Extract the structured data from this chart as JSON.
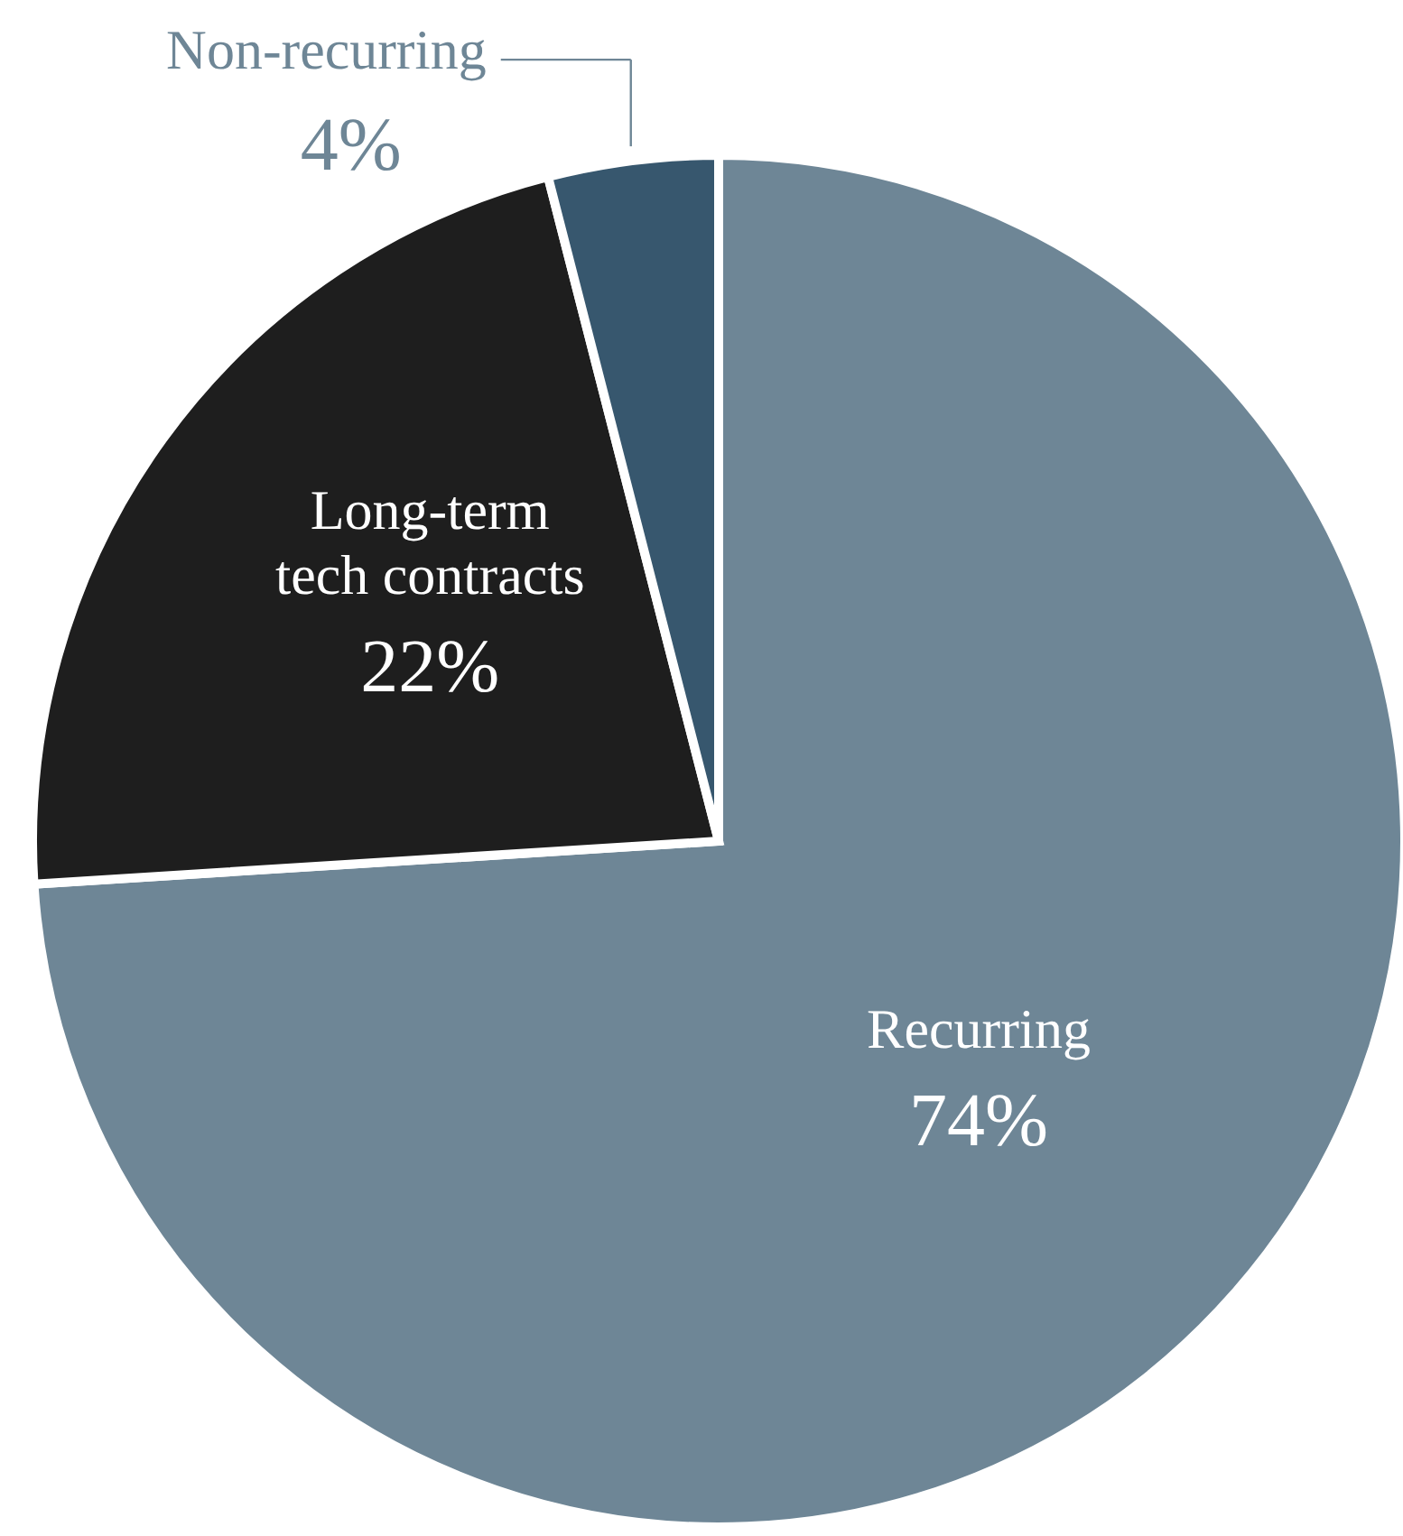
{
  "chart_data": {
    "type": "pie",
    "categories": [
      "Recurring",
      "Long-term tech contracts",
      "Non-recurring"
    ],
    "values": [
      74,
      22,
      4
    ],
    "colors": [
      "#6e8696",
      "#1e1e1e",
      "#37576e"
    ],
    "value_labels": [
      "74%",
      "22%",
      "4%"
    ]
  }
}
